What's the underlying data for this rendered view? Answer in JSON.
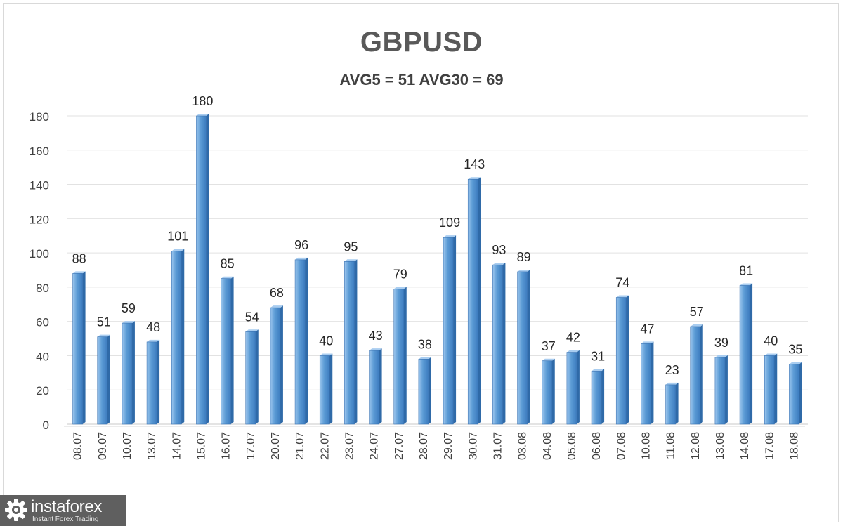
{
  "chart_data": {
    "type": "bar",
    "title": "GBPUSD",
    "subtitle": "AVG5 = 51 AVG30 = 69",
    "categories": [
      "08.07",
      "09.07",
      "10.07",
      "13.07",
      "14.07",
      "15.07",
      "16.07",
      "17.07",
      "20.07",
      "21.07",
      "22.07",
      "23.07",
      "24.07",
      "27.07",
      "28.07",
      "29.07",
      "30.07",
      "31.07",
      "03.08",
      "04.08",
      "05.08",
      "06.08",
      "07.08",
      "10.08",
      "11.08",
      "12.08",
      "13.08",
      "14.08",
      "17.08",
      "18.08"
    ],
    "values": [
      88,
      51,
      59,
      48,
      101,
      180,
      85,
      54,
      68,
      96,
      40,
      95,
      43,
      79,
      38,
      109,
      143,
      93,
      89,
      37,
      42,
      31,
      74,
      47,
      23,
      57,
      39,
      81,
      40,
      35
    ],
    "ylim": [
      0,
      180
    ],
    "yticks": [
      0,
      20,
      40,
      60,
      80,
      100,
      120,
      140,
      160,
      180
    ],
    "grid": true,
    "data_labels": true,
    "bar_color": "#5b9bd5"
  },
  "logo": {
    "name": "instaforex",
    "tagline": "Instant Forex Trading"
  }
}
